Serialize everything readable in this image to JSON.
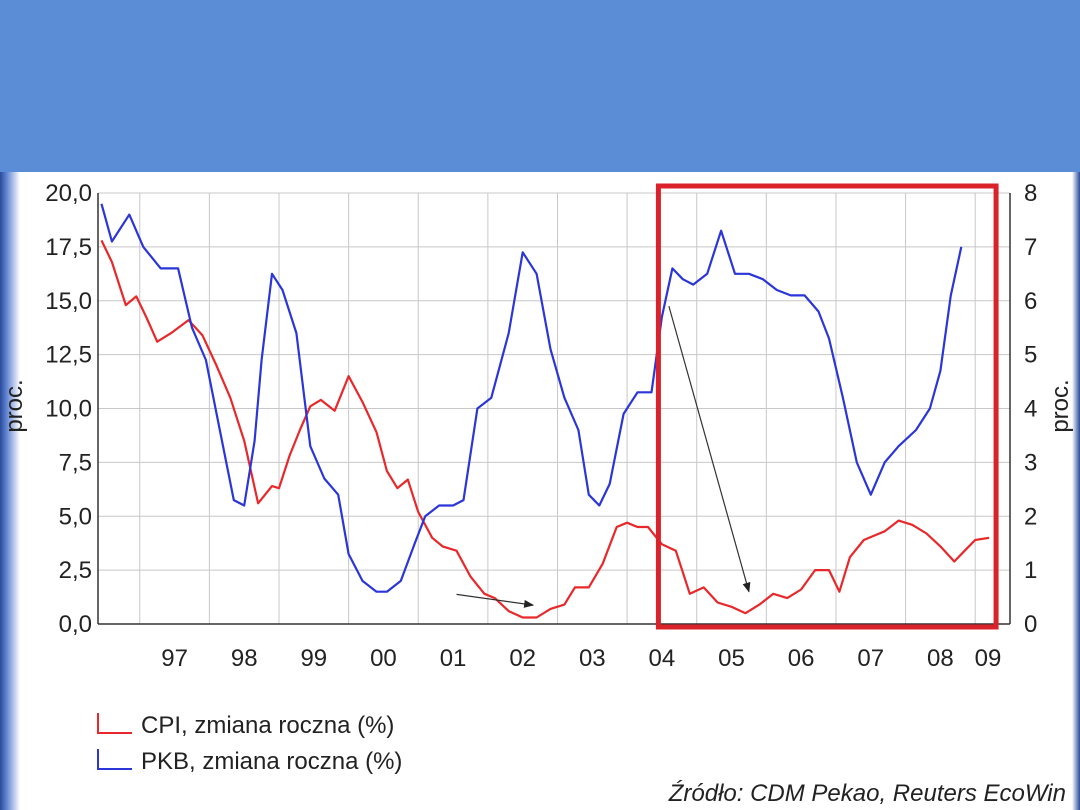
{
  "colors": {
    "header_band": "#5a8dd6",
    "cpi_line": "#e8282a",
    "pkb_line": "#2a36d8",
    "highlight_box": "#d9222a",
    "grid": "#c8c8c8",
    "axis": "#333333"
  },
  "chart_data": {
    "type": "line",
    "title": "",
    "xlabel": "",
    "ylabel_left": "proc.",
    "ylabel_right": "proc.",
    "ylim_left": [
      0,
      20
    ],
    "ylim_right": [
      0,
      8
    ],
    "xlim": [
      1996.4,
      2009.5
    ],
    "grid": true,
    "x_tick_labels": [
      "97",
      "98",
      "99",
      "00",
      "01",
      "02",
      "03",
      "04",
      "05",
      "06",
      "07",
      "08",
      "09"
    ],
    "y_left_tick_labels": [
      "0,0",
      "2,5",
      "5,0",
      "7,5",
      "10,0",
      "12,5",
      "15,0",
      "17,5",
      "20,0"
    ],
    "y_right_tick_labels": [
      "0",
      "1",
      "2",
      "3",
      "4",
      "5",
      "6",
      "7",
      "8"
    ],
    "series": [
      {
        "name": "CPI, zmiana roczna (%)",
        "axis": "left",
        "color": "#e8282a",
        "x": [
          1996.45,
          1996.6,
          1996.8,
          1996.95,
          1997.1,
          1997.25,
          1997.45,
          1997.7,
          1997.9,
          1998.1,
          1998.3,
          1998.5,
          1998.7,
          1998.9,
          1999.0,
          1999.15,
          1999.3,
          1999.45,
          1999.6,
          1999.8,
          2000.0,
          2000.2,
          2000.4,
          2000.55,
          2000.7,
          2000.85,
          2001.0,
          2001.2,
          2001.35,
          2001.55,
          2001.75,
          2001.95,
          2002.1,
          2002.3,
          2002.5,
          2002.7,
          2002.9,
          2003.1,
          2003.25,
          2003.45,
          2003.65,
          2003.85,
          2004.0,
          2004.15,
          2004.3,
          2004.5,
          2004.7,
          2004.9,
          2005.1,
          2005.3,
          2005.5,
          2005.7,
          2005.9,
          2006.1,
          2006.3,
          2006.5,
          2006.7,
          2006.9,
          2007.05,
          2007.2,
          2007.4,
          2007.55,
          2007.7,
          2007.9,
          2008.1,
          2008.3,
          2008.5,
          2008.7,
          2008.85,
          2009.0,
          2009.2
        ],
        "y": [
          17.8,
          16.8,
          14.8,
          15.2,
          14.2,
          13.1,
          13.5,
          14.1,
          13.4,
          12.0,
          10.5,
          8.5,
          5.6,
          6.4,
          6.3,
          7.8,
          9.0,
          10.1,
          10.4,
          9.9,
          11.5,
          10.3,
          8.9,
          7.1,
          6.3,
          6.7,
          5.2,
          4.0,
          3.6,
          3.4,
          2.2,
          1.4,
          1.2,
          0.6,
          0.3,
          0.3,
          0.7,
          0.9,
          1.7,
          1.7,
          2.8,
          4.5,
          4.7,
          4.5,
          4.5,
          3.7,
          3.4,
          1.4,
          1.7,
          1.0,
          0.8,
          0.5,
          0.9,
          1.4,
          1.2,
          1.6,
          2.5,
          2.5,
          1.5,
          3.1,
          3.9,
          4.1,
          4.3,
          4.8,
          4.6,
          4.2,
          3.6,
          2.9,
          3.4,
          3.9,
          4.0
        ]
      },
      {
        "name": "PKB, zmiana roczna (%)",
        "axis": "right",
        "color": "#2a36d8",
        "x": [
          1996.45,
          1996.6,
          1996.85,
          1997.05,
          1997.3,
          1997.55,
          1997.75,
          1997.95,
          1998.15,
          1998.35,
          1998.5,
          1998.65,
          1998.75,
          1998.9,
          1999.05,
          1999.25,
          1999.45,
          1999.65,
          1999.85,
          2000.0,
          2000.2,
          2000.4,
          2000.55,
          2000.75,
          2000.95,
          2001.1,
          2001.3,
          2001.5,
          2001.65,
          2001.85,
          2002.05,
          2002.3,
          2002.5,
          2002.7,
          2002.9,
          2003.1,
          2003.3,
          2003.45,
          2003.6,
          2003.75,
          2003.95,
          2004.15,
          2004.35,
          2004.5,
          2004.65,
          2004.8,
          2004.95,
          2005.15,
          2005.35,
          2005.55,
          2005.75,
          2005.95,
          2006.15,
          2006.35,
          2006.55,
          2006.75,
          2006.9,
          2007.1,
          2007.3,
          2007.5,
          2007.7,
          2007.9,
          2008.15,
          2008.35,
          2008.5,
          2008.65,
          2008.8
        ],
        "y": [
          7.8,
          7.1,
          7.6,
          7.0,
          6.6,
          6.6,
          5.5,
          4.9,
          3.6,
          2.3,
          2.2,
          3.4,
          4.9,
          6.5,
          6.2,
          5.4,
          3.3,
          2.7,
          2.4,
          1.3,
          0.8,
          0.6,
          0.6,
          0.8,
          1.5,
          2.0,
          2.2,
          2.2,
          2.3,
          4.0,
          4.2,
          5.4,
          6.9,
          6.5,
          5.1,
          4.2,
          3.6,
          2.4,
          2.2,
          2.6,
          3.9,
          4.3,
          4.3,
          5.7,
          6.6,
          6.4,
          6.3,
          6.5,
          7.3,
          6.5,
          6.5,
          6.4,
          6.2,
          6.1,
          6.1,
          5.8,
          5.3,
          4.2,
          3.0,
          2.4,
          3.0,
          3.3,
          3.6,
          4.0,
          4.7,
          6.1,
          7.0
        ]
      }
    ],
    "legend": {
      "placement": "bottom-left",
      "entries": [
        "CPI, zmiana roczna (%)",
        "PKB, zmiana roczna (%)"
      ]
    },
    "annotations": [
      {
        "type": "arrow",
        "from": [
          2001.55,
          0.55
        ],
        "to": [
          2002.65,
          0.35
        ]
      },
      {
        "type": "arrow",
        "from": [
          2004.6,
          5.9
        ],
        "to": [
          2005.75,
          0.6
        ]
      }
    ],
    "highlight_range_x": [
      2004.45,
      2009.3
    ],
    "source": "Źródło: CDM Pekao, Reuters EcoWin"
  }
}
